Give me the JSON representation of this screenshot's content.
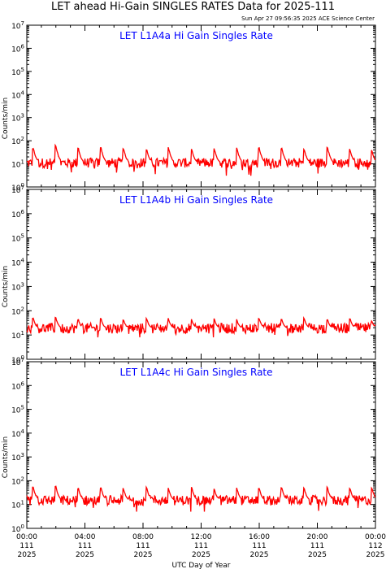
{
  "title": "LET ahead Hi-Gain SINGLES RATES Data for 2025-111",
  "timestamp": "Sun Apr 27 09:56:35 2025 ACE Science Center",
  "colors": {
    "trace": "#ff0000",
    "panel_label": "#0000ff",
    "axis": "#000000"
  },
  "chart_data": [
    {
      "type": "line",
      "title": "LET L1A4a Hi Gain Singles Rate",
      "ylabel": "Counts/min",
      "yscale": "log",
      "ylim": [
        1,
        10000000
      ],
      "yticks": [
        "10^0",
        "10^1",
        "10^2",
        "10^3",
        "10^4",
        "10^5",
        "10^6",
        "10^7"
      ],
      "xlim_hours": [
        0,
        24
      ],
      "baseline": 11,
      "min_value": 3,
      "spikes": [
        {
          "t": 0.45,
          "value": 50
        },
        {
          "t": 2.0,
          "value": 65
        },
        {
          "t": 3.55,
          "value": 50
        },
        {
          "t": 5.1,
          "value": 55
        },
        {
          "t": 6.65,
          "value": 50
        },
        {
          "t": 8.25,
          "value": 45
        },
        {
          "t": 9.75,
          "value": 55
        },
        {
          "t": 11.35,
          "value": 45
        },
        {
          "t": 12.9,
          "value": 50
        },
        {
          "t": 14.45,
          "value": 55
        },
        {
          "t": 16.0,
          "value": 50
        },
        {
          "t": 17.55,
          "value": 50
        },
        {
          "t": 19.1,
          "value": 45
        },
        {
          "t": 20.7,
          "value": 55
        },
        {
          "t": 22.25,
          "value": 45
        },
        {
          "t": 23.75,
          "value": 40
        }
      ]
    },
    {
      "type": "line",
      "title": "LET L1A4b Hi Gain Singles Rate",
      "ylabel": "Counts/min",
      "yscale": "log",
      "ylim": [
        1,
        10000000
      ],
      "yticks": [
        "10^0",
        "10^1",
        "10^2",
        "10^3",
        "10^4",
        "10^5",
        "10^6",
        "10^7"
      ],
      "xlim_hours": [
        0,
        24
      ],
      "baseline": 19,
      "min_value": 8,
      "spikes": [
        {
          "t": 0.45,
          "value": 50
        },
        {
          "t": 2.0,
          "value": 55
        },
        {
          "t": 3.55,
          "value": 45
        },
        {
          "t": 5.1,
          "value": 50
        },
        {
          "t": 6.65,
          "value": 45
        },
        {
          "t": 8.25,
          "value": 50
        },
        {
          "t": 9.75,
          "value": 50
        },
        {
          "t": 11.35,
          "value": 45
        },
        {
          "t": 12.9,
          "value": 50
        },
        {
          "t": 14.45,
          "value": 45
        },
        {
          "t": 16.0,
          "value": 50
        },
        {
          "t": 17.55,
          "value": 45
        },
        {
          "t": 19.1,
          "value": 50
        },
        {
          "t": 20.7,
          "value": 45
        },
        {
          "t": 22.25,
          "value": 50
        },
        {
          "t": 23.75,
          "value": 40
        }
      ]
    },
    {
      "type": "line",
      "title": "LET L1A4c Hi Gain Singles Rate",
      "ylabel": "Counts/min",
      "yscale": "log",
      "ylim": [
        1,
        10000000
      ],
      "yticks": [
        "10^0",
        "10^1",
        "10^2",
        "10^3",
        "10^4",
        "10^5",
        "10^6",
        "10^7"
      ],
      "xlim_hours": [
        0,
        24
      ],
      "baseline": 15,
      "min_value": 5,
      "spikes": [
        {
          "t": 0.45,
          "value": 55
        },
        {
          "t": 2.0,
          "value": 60
        },
        {
          "t": 3.55,
          "value": 50
        },
        {
          "t": 5.1,
          "value": 55
        },
        {
          "t": 6.65,
          "value": 50
        },
        {
          "t": 8.25,
          "value": 55
        },
        {
          "t": 9.75,
          "value": 50
        },
        {
          "t": 11.35,
          "value": 55
        },
        {
          "t": 12.9,
          "value": 50
        },
        {
          "t": 14.45,
          "value": 55
        },
        {
          "t": 16.0,
          "value": 50
        },
        {
          "t": 17.55,
          "value": 55
        },
        {
          "t": 19.1,
          "value": 50
        },
        {
          "t": 20.7,
          "value": 55
        },
        {
          "t": 22.25,
          "value": 50
        },
        {
          "t": 23.75,
          "value": 55
        }
      ]
    }
  ],
  "x_axis": {
    "label": "UTC Day of Year",
    "ticks": [
      {
        "hour": 0,
        "time": "00:00",
        "doy": "111",
        "year": "2025"
      },
      {
        "hour": 4,
        "time": "04:00",
        "doy": "111",
        "year": "2025"
      },
      {
        "hour": 8,
        "time": "08:00",
        "doy": "111",
        "year": "2025"
      },
      {
        "hour": 12,
        "time": "12:00",
        "doy": "111",
        "year": "2025"
      },
      {
        "hour": 16,
        "time": "16:00",
        "doy": "111",
        "year": "2025"
      },
      {
        "hour": 20,
        "time": "20:00",
        "doy": "111",
        "year": "2025"
      },
      {
        "hour": 24,
        "time": "00:00",
        "doy": "112",
        "year": "2025"
      }
    ]
  }
}
